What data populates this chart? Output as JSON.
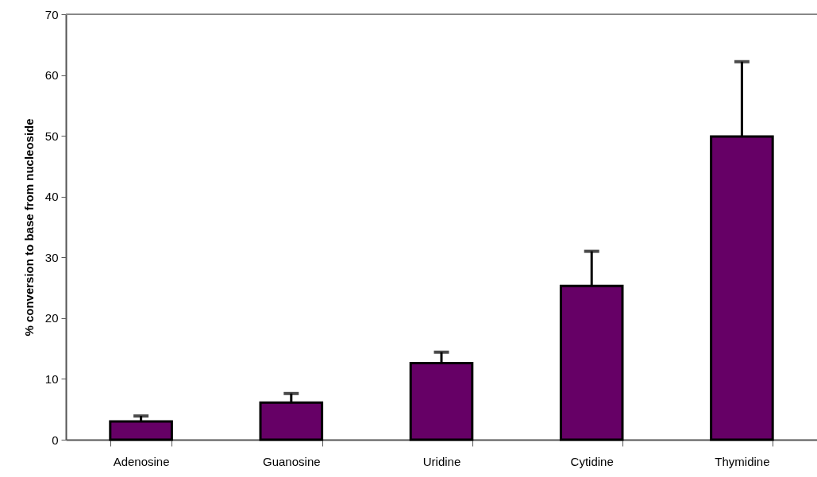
{
  "chart_data": {
    "type": "bar",
    "ylabel": "% conversion to base from nucleoside",
    "categories": [
      "Adenosine",
      "Guanosine",
      "Uridine",
      "Cytidine",
      "Thymidine"
    ],
    "values": [
      3.0,
      6.1,
      12.6,
      25.3,
      49.9
    ],
    "errors": [
      [
        3.0,
        3.9
      ],
      [
        6.1,
        7.6
      ],
      [
        12.6,
        14.4
      ],
      [
        25.3,
        31.0
      ],
      [
        49.9,
        62.2
      ]
    ],
    "color": "#660066",
    "ylim": [
      0,
      70
    ],
    "yticks": [
      0,
      10,
      20,
      30,
      40,
      50,
      60,
      70
    ],
    "grid": false
  }
}
